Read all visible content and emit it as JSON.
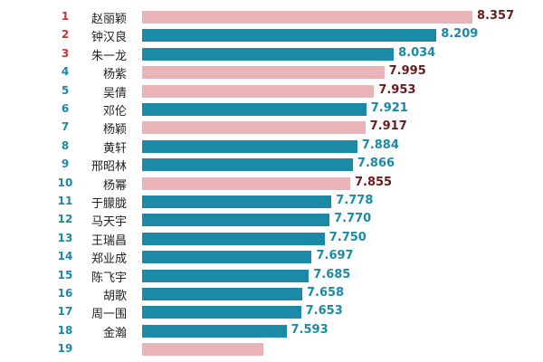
{
  "chart_data": {
    "type": "bar",
    "orientation": "horizontal",
    "title": "",
    "xlabel": "",
    "ylabel": "",
    "xlim": [
      7.0,
      8.4
    ],
    "grid": false,
    "legend": "none",
    "colors": {
      "pink": "#e8b4b8",
      "teal": "#1a8aa6",
      "rank_top": "#d03030",
      "rank_rest": "#1a8aa6",
      "value_pink": "#6b1b1b",
      "value_teal": "#1a8aa6"
    },
    "rows": [
      {
        "rank": "1",
        "name": "赵丽颖",
        "value": 8.357,
        "label": "8.357",
        "color": "pink"
      },
      {
        "rank": "2",
        "name": "钟汉良",
        "value": 8.209,
        "label": "8.209",
        "color": "teal"
      },
      {
        "rank": "3",
        "name": "朱一龙",
        "value": 8.034,
        "label": "8.034",
        "color": "teal"
      },
      {
        "rank": "4",
        "name": "杨紫",
        "value": 7.995,
        "label": "7.995",
        "color": "pink"
      },
      {
        "rank": "5",
        "name": "吴倩",
        "value": 7.953,
        "label": "7.953",
        "color": "pink"
      },
      {
        "rank": "6",
        "name": "邓伦",
        "value": 7.921,
        "label": "7.921",
        "color": "teal"
      },
      {
        "rank": "7",
        "name": "杨颖",
        "value": 7.917,
        "label": "7.917",
        "color": "pink"
      },
      {
        "rank": "8",
        "name": "黄轩",
        "value": 7.884,
        "label": "7.884",
        "color": "teal"
      },
      {
        "rank": "9",
        "name": "邢昭林",
        "value": 7.866,
        "label": "7.866",
        "color": "teal"
      },
      {
        "rank": "10",
        "name": "杨幂",
        "value": 7.855,
        "label": "7.855",
        "color": "pink"
      },
      {
        "rank": "11",
        "name": "于朦胧",
        "value": 7.778,
        "label": "7.778",
        "color": "teal"
      },
      {
        "rank": "12",
        "name": "马天宇",
        "value": 7.77,
        "label": "7.770",
        "color": "teal"
      },
      {
        "rank": "13",
        "name": "王瑞昌",
        "value": 7.75,
        "label": "7.750",
        "color": "teal"
      },
      {
        "rank": "14",
        "name": "郑业成",
        "value": 7.697,
        "label": "7.697",
        "color": "teal"
      },
      {
        "rank": "15",
        "name": "陈飞宇",
        "value": 7.685,
        "label": "7.685",
        "color": "teal"
      },
      {
        "rank": "16",
        "name": "胡歌",
        "value": 7.658,
        "label": "7.658",
        "color": "teal"
      },
      {
        "rank": "17",
        "name": "周一围",
        "value": 7.653,
        "label": "7.653",
        "color": "teal"
      },
      {
        "rank": "18",
        "name": "金瀚",
        "value": 7.593,
        "label": "7.593",
        "color": "teal"
      },
      {
        "rank": "19",
        "name": "",
        "value": 7.5,
        "label": "",
        "color": "pink"
      }
    ]
  }
}
